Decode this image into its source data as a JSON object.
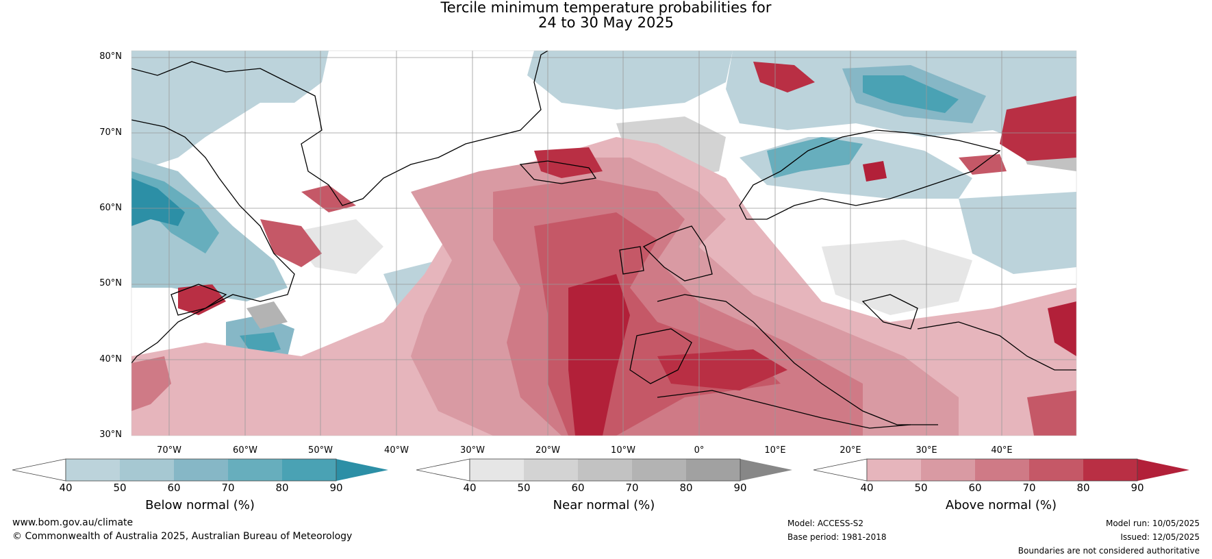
{
  "title": {
    "line1": "Tercile minimum temperature probabilities for",
    "line2": "24 to 30 May 2025"
  },
  "lat_labels": [
    "80°N",
    "70°N",
    "60°N",
    "50°N",
    "40°N",
    "30°N"
  ],
  "lon_labels": [
    "70°W",
    "60°W",
    "50°W",
    "40°W",
    "30°W",
    "20°W",
    "10°W",
    "0°",
    "10°E",
    "20°E",
    "30°E",
    "40°E"
  ],
  "colorbars": [
    {
      "label": "Below normal (%)",
      "ticks": [
        "40",
        "50",
        "60",
        "70",
        "80",
        "90"
      ],
      "colors": [
        "#ffffff",
        "#bcd3db",
        "#a6c8d2",
        "#86b7c6",
        "#67aebd",
        "#4aa2b4",
        "#2c8fa6"
      ]
    },
    {
      "label": "Near normal (%)",
      "ticks": [
        "40",
        "50",
        "60",
        "70",
        "80",
        "90"
      ],
      "colors": [
        "#ffffff",
        "#e6e6e6",
        "#d3d3d3",
        "#c2c2c2",
        "#b3b3b3",
        "#a1a1a1",
        "#878787"
      ]
    },
    {
      "label": "Above normal (%)",
      "ticks": [
        "40",
        "50",
        "60",
        "70",
        "80",
        "90"
      ],
      "colors": [
        "#ffffff",
        "#e6b5bc",
        "#d99aa3",
        "#cf7a86",
        "#c55867",
        "#b92f44",
        "#b22039"
      ]
    }
  ],
  "footer": {
    "website": "www.bom.gov.au/climate",
    "copyright": "© Commonwealth of Australia 2025, Australian Bureau of Meteorology",
    "model": "Model: ACCESS-S2",
    "base_period": "Base period: 1981-2018",
    "model_run": "Model run: 10/05/2025",
    "issued": "Issued: 12/05/2025",
    "disclaimer": "Boundaries are not considered authoritative"
  }
}
